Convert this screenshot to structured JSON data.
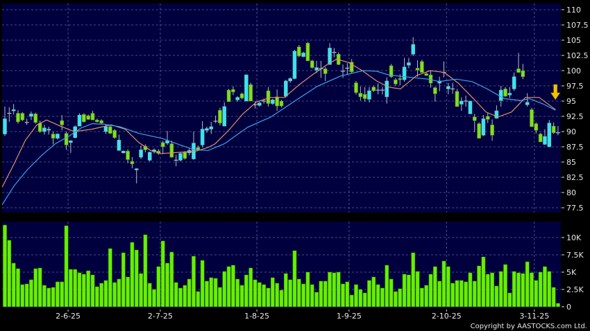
{
  "chart_data": {
    "type": "candlestick",
    "colors": {
      "up": "#33e8f2",
      "down": "#7fe020",
      "volume": "#66f000",
      "ma_short": "#e0906a",
      "ma_long": "#3fa2ee",
      "panel_bg": "#00003f",
      "grid": "#5a6690",
      "marker": "#f2c200"
    },
    "price_axis": {
      "range": [
        77.5,
        110
      ],
      "ticks": [
        "77.5",
        "80",
        "82.5",
        "85",
        "87.5",
        "90",
        "92.5",
        "95",
        "97.5",
        "100",
        "102.5",
        "105",
        "107.5",
        "110"
      ],
      "grid": true,
      "position": "right"
    },
    "volume_axis": {
      "range": [
        0,
        12
      ],
      "unit": "K",
      "ticks": [
        {
          "v": 0,
          "label": "0"
        },
        {
          "v": 2.5,
          "label": "2.5K"
        },
        {
          "v": 5,
          "label": "5K"
        },
        {
          "v": 7.5,
          "label": "7.5K"
        },
        {
          "v": 10,
          "label": "10K"
        }
      ],
      "grid": true
    },
    "x_ticks": [
      {
        "label": "2-6-25",
        "candle": 15.4
      },
      {
        "label": "2-7-25",
        "candle": 36.4
      },
      {
        "label": "1-8-25",
        "candle": 58.4
      },
      {
        "label": "1-9-25",
        "candle": 79.4
      },
      {
        "label": "2-10-25",
        "candle": 101.6
      },
      {
        "label": "3-11-25",
        "candle": 121.6
      }
    ],
    "ohlc_format": [
      "open",
      "high",
      "low",
      "close"
    ],
    "ohlc": [
      [
        89.6,
        94.1,
        89.3,
        92.1
      ],
      [
        93.0,
        94.0,
        91.6,
        93.0
      ],
      [
        93.4,
        94.5,
        92.8,
        93.6
      ],
      [
        93.0,
        93.5,
        91.3,
        91.6
      ],
      [
        93.0,
        93.2,
        91.7,
        91.9
      ],
      [
        91.5,
        92.1,
        91.1,
        91.5
      ],
      [
        92.5,
        93.3,
        91.9,
        92.9
      ],
      [
        92.9,
        93.1,
        91.3,
        91.5
      ],
      [
        91.4,
        91.8,
        89.8,
        90.0
      ],
      [
        90.0,
        91.1,
        89.5,
        90.6
      ],
      [
        90.3,
        90.8,
        89.5,
        90.4
      ],
      [
        89.6,
        90.0,
        87.9,
        88.9
      ],
      [
        88.9,
        89.7,
        88.7,
        89.6
      ],
      [
        91.8,
        92.7,
        90.2,
        91.1
      ],
      [
        89.7,
        90.0,
        87.0,
        87.8
      ],
      [
        88.2,
        88.5,
        86.5,
        88.5
      ],
      [
        89.0,
        91.0,
        88.9,
        90.8
      ],
      [
        90.9,
        93.0,
        90.9,
        92.7
      ],
      [
        92.8,
        93.0,
        91.5,
        91.6
      ],
      [
        92.6,
        92.8,
        91.9,
        92.0
      ],
      [
        93.0,
        93.4,
        91.9,
        91.9
      ],
      [
        91.9,
        92.1,
        91.5,
        91.6
      ],
      [
        91.8,
        92.0,
        91.2,
        91.4
      ],
      [
        90.0,
        91.1,
        89.6,
        90.8
      ],
      [
        90.8,
        91.0,
        89.6,
        89.7
      ],
      [
        90.2,
        90.4,
        88.8,
        89.0
      ],
      [
        86.9,
        89.5,
        86.9,
        88.6
      ],
      [
        86.5,
        86.9,
        86.4,
        86.8
      ],
      [
        86.8,
        87.1,
        84.8,
        85.4
      ],
      [
        85.1,
        85.8,
        84.0,
        84.7
      ],
      [
        83.7,
        84.0,
        81.5,
        83.9
      ],
      [
        85.8,
        87.7,
        85.5,
        87.0
      ],
      [
        87.6,
        87.9,
        86.6,
        87.0
      ],
      [
        85.3,
        86.7,
        85.1,
        86.6
      ],
      [
        86.7,
        87.2,
        86.4,
        87.0
      ],
      [
        86.8,
        87.1,
        86.2,
        86.4
      ],
      [
        88.2,
        88.5,
        86.3,
        87.5
      ],
      [
        88.1,
        90.1,
        87.8,
        88.5
      ],
      [
        88.0,
        88.5,
        85.7,
        85.8
      ],
      [
        85.3,
        86.2,
        84.3,
        85.3
      ],
      [
        85.3,
        86.6,
        85.1,
        86.4
      ],
      [
        86.6,
        86.8,
        85.4,
        85.6
      ],
      [
        86.5,
        87.2,
        86.1,
        86.9
      ],
      [
        85.5,
        90.0,
        85.4,
        88.1
      ],
      [
        87.4,
        87.7,
        86.9,
        87.0
      ],
      [
        87.8,
        91.7,
        87.4,
        90.4
      ],
      [
        90.2,
        90.8,
        89.8,
        90.5
      ],
      [
        90.4,
        91.6,
        89.6,
        90.8
      ],
      [
        91.7,
        92.6,
        91.4,
        91.7
      ],
      [
        93.5,
        93.9,
        91.0,
        91.4
      ],
      [
        90.9,
        94.8,
        90.9,
        94.1
      ],
      [
        96.8,
        97.0,
        94.9,
        94.9
      ],
      [
        96.9,
        97.4,
        96.0,
        96.5
      ],
      [
        95.2,
        95.8,
        94.9,
        95.6
      ],
      [
        96.2,
        96.4,
        95.3,
        95.5
      ],
      [
        95.0,
        99.4,
        95.0,
        99.3
      ],
      [
        97.7,
        98.0,
        95.0,
        95.0
      ],
      [
        94.4,
        95.0,
        93.8,
        94.4
      ],
      [
        94.3,
        94.9,
        94.1,
        94.7
      ],
      [
        95.0,
        95.4,
        94.6,
        95.0
      ],
      [
        96.7,
        97.3,
        94.1,
        94.6
      ],
      [
        94.6,
        95.4,
        94.4,
        95.2
      ],
      [
        95.7,
        96.9,
        93.4,
        94.2
      ],
      [
        95.0,
        95.2,
        94.0,
        94.2
      ],
      [
        95.8,
        98.5,
        95.6,
        98.3
      ],
      [
        98.3,
        98.9,
        98.0,
        98.7
      ],
      [
        98.7,
        103.4,
        98.6,
        103.2
      ],
      [
        103.9,
        104.2,
        102.2,
        102.4
      ],
      [
        102.3,
        103.1,
        102.2,
        102.9
      ],
      [
        104.5,
        104.7,
        101.6,
        101.6
      ],
      [
        101.6,
        101.8,
        100.3,
        100.5
      ],
      [
        100.1,
        101.6,
        99.6,
        100.5
      ],
      [
        100.3,
        101.6,
        98.8,
        100.3
      ],
      [
        100.3,
        100.6,
        98.3,
        99.5
      ],
      [
        101.0,
        104.5,
        101.0,
        103.7
      ],
      [
        103.0,
        103.7,
        102.2,
        103.0
      ],
      [
        102.7,
        103.0,
        100.9,
        101.0
      ],
      [
        99.9,
        101.0,
        98.8,
        99.9
      ],
      [
        100.4,
        101.2,
        99.4,
        100.4
      ],
      [
        101.4,
        101.9,
        99.5,
        99.8
      ],
      [
        98.0,
        98.3,
        96.1,
        96.4
      ],
      [
        96.3,
        97.4,
        95.1,
        95.7
      ],
      [
        96.1,
        97.3,
        94.9,
        95.4
      ],
      [
        95.3,
        97.3,
        94.8,
        96.7
      ],
      [
        97.3,
        97.5,
        96.5,
        96.7
      ],
      [
        96.8,
        97.9,
        96.1,
        96.8
      ],
      [
        96.8,
        97.3,
        96.1,
        96.8
      ],
      [
        95.7,
        98.9,
        94.6,
        98.3
      ],
      [
        100.8,
        101.1,
        98.8,
        99.0
      ],
      [
        98.5,
        98.8,
        97.5,
        97.8
      ],
      [
        98.7,
        99.4,
        97.6,
        98.6
      ],
      [
        98.5,
        102.1,
        98.2,
        100.6
      ],
      [
        100.9,
        102.1,
        100.4,
        101.3
      ],
      [
        102.7,
        105.5,
        102.4,
        104.3
      ],
      [
        100.4,
        101.7,
        99.0,
        100.1
      ],
      [
        101.5,
        101.8,
        99.7,
        99.7
      ],
      [
        99.5,
        99.7,
        99.2,
        99.2
      ],
      [
        99.3,
        100.0,
        97.2,
        97.95
      ],
      [
        97.2,
        97.4,
        94.9,
        96.2
      ],
      [
        97.95,
        99.0,
        96.6,
        98.3
      ],
      [
        99.7,
        101.5,
        98.9,
        99.7
      ],
      [
        97.0,
        98.0,
        96.1,
        97.4
      ],
      [
        97.0,
        98.0,
        96.2,
        97.0
      ],
      [
        96.6,
        97.0,
        94.1,
        94.1
      ],
      [
        94.5,
        95.6,
        93.4,
        95.0
      ],
      [
        95.0,
        95.9,
        94.1,
        95.0
      ],
      [
        92.9,
        95.0,
        92.9,
        95.0
      ],
      [
        92.4,
        92.9,
        89.9,
        91.8
      ],
      [
        91.3,
        91.5,
        88.9,
        88.9
      ],
      [
        89.4,
        92.7,
        89.3,
        92.1
      ],
      [
        92.5,
        93.1,
        91.4,
        92.0
      ],
      [
        91.1,
        92.0,
        88.5,
        89.4
      ],
      [
        92.2,
        94.3,
        92.1,
        93.4
      ],
      [
        95.1,
        97.5,
        94.1,
        96.8
      ],
      [
        97.0,
        97.3,
        95.7,
        95.8
      ],
      [
        96.0,
        97.3,
        95.5,
        96.3
      ],
      [
        97.0,
        99.7,
        96.7,
        99.0
      ],
      [
        100.3,
        102.9,
        99.7,
        99.7
      ],
      [
        100.0,
        101.1,
        98.6,
        99.0
      ],
      [
        94.4,
        96.3,
        94.1,
        94.8
      ],
      [
        93.6,
        93.9,
        90.8,
        90.8
      ],
      [
        91.3,
        91.5,
        89.7,
        90.2
      ],
      [
        89.6,
        89.8,
        88.3,
        88.3
      ],
      [
        87.9,
        90.4,
        87.8,
        89.2
      ],
      [
        87.5,
        91.9,
        87.5,
        91.4
      ],
      [
        90.9,
        91.5,
        89.6,
        89.8
      ],
      [
        89.8,
        90.9,
        89.4,
        89.8
      ]
    ],
    "volume_k": [
      11.8,
      9.6,
      6.3,
      5.5,
      3.2,
      3.3,
      3.9,
      5.5,
      5.6,
      3.1,
      2.7,
      2.8,
      3.6,
      3.6,
      11.7,
      5.4,
      5.4,
      4.9,
      4.7,
      5.2,
      4.6,
      2.9,
      3.4,
      3.8,
      8.4,
      3.5,
      4.0,
      7.8,
      4.3,
      9.3,
      8.2,
      4.8,
      10.4,
      3.4,
      2.5,
      5.8,
      9.5,
      6.3,
      7.9,
      3.5,
      2.7,
      3.1,
      4.0,
      7.3,
      2.2,
      6.7,
      3.7,
      4.2,
      4.1,
      2.8,
      5.1,
      5.8,
      6.0,
      4.0,
      3.1,
      4.6,
      5.6,
      3.9,
      3.5,
      3.2,
      2.7,
      4.2,
      3.4,
      2.4,
      4.8,
      3.9,
      8.1,
      4.0,
      3.3,
      5.0,
      3.2,
      2.1,
      3.7,
      3.7,
      5.0,
      4.9,
      5.0,
      3.3,
      3.6,
      1.7,
      3.2,
      2.5,
      2.0,
      3.8,
      4.3,
      3.2,
      2.7,
      6.0,
      4.0,
      2.2,
      2.6,
      4.7,
      4.6,
      7.8,
      5.1,
      2.7,
      3.1,
      4.7,
      5.8,
      3.7,
      6.6,
      5.8,
      3.4,
      3.8,
      3.8,
      3.6,
      4.9,
      3.7,
      5.9,
      7.2,
      4.7,
      4.9,
      3.0,
      5.1,
      6.1,
      2.0,
      5.1,
      4.9,
      4.8,
      6.5,
      4.9,
      3.8,
      5.0,
      5.8,
      5.1,
      2.8,
      0.5
    ],
    "moving_averages": [
      {
        "key": "ma_short",
        "points": [
          [
            0.4,
            80.9
          ],
          [
            3.1,
            84.7
          ],
          [
            5.7,
            88.6
          ],
          [
            8.3,
            91.1
          ],
          [
            10.5,
            91.9
          ],
          [
            13.6,
            90.9
          ],
          [
            16.8,
            90.0
          ],
          [
            20.9,
            90.4
          ],
          [
            25.2,
            91.1
          ],
          [
            28.4,
            90.4
          ],
          [
            31.5,
            88.2
          ],
          [
            34.2,
            86.9
          ],
          [
            36.7,
            86.4
          ],
          [
            41.0,
            86.6
          ],
          [
            44.6,
            86.8
          ],
          [
            47.3,
            87.4
          ],
          [
            48.9,
            88.0
          ],
          [
            52.1,
            90.3
          ],
          [
            55.2,
            92.9
          ],
          [
            58.4,
            94.9
          ],
          [
            61.6,
            95.6
          ],
          [
            64.7,
            95.6
          ],
          [
            67.9,
            97.6
          ],
          [
            71.0,
            99.3
          ],
          [
            74.2,
            100.9
          ],
          [
            76.6,
            101.9
          ],
          [
            79.4,
            101.3
          ],
          [
            82.6,
            99.9
          ],
          [
            85.7,
            98.3
          ],
          [
            88.4,
            97.3
          ],
          [
            91.1,
            97.0
          ],
          [
            94.8,
            99.2
          ],
          [
            97.9,
            100.0
          ],
          [
            101.1,
            99.7
          ],
          [
            104.2,
            98.0
          ],
          [
            107.9,
            95.3
          ],
          [
            110.6,
            93.2
          ],
          [
            113.3,
            92.4
          ],
          [
            116.4,
            93.2
          ],
          [
            119.6,
            95.6
          ],
          [
            122.7,
            95.6
          ],
          [
            126.4,
            93.6
          ]
        ]
      },
      {
        "key": "ma_long",
        "points": [
          [
            0.4,
            78.0
          ],
          [
            3.1,
            81.1
          ],
          [
            6.2,
            83.8
          ],
          [
            9.4,
            86.1
          ],
          [
            12.5,
            88.0
          ],
          [
            15.7,
            89.3
          ],
          [
            18.4,
            90.6
          ],
          [
            20.9,
            91.3
          ],
          [
            23.6,
            91.2
          ],
          [
            27.2,
            90.8
          ],
          [
            31.5,
            89.7
          ],
          [
            36.7,
            88.9
          ],
          [
            41.0,
            87.8
          ],
          [
            44.2,
            87.0
          ],
          [
            47.3,
            86.9
          ],
          [
            51.0,
            88.0
          ],
          [
            56.3,
            90.7
          ],
          [
            61.6,
            92.4
          ],
          [
            66.8,
            94.9
          ],
          [
            72.1,
            97.4
          ],
          [
            77.4,
            99.1
          ],
          [
            82.6,
            100.0
          ],
          [
            85.7,
            99.9
          ],
          [
            88.4,
            99.3
          ],
          [
            92.1,
            99.0
          ],
          [
            97.4,
            98.6
          ],
          [
            100.0,
            98.2
          ],
          [
            103.8,
            98.6
          ],
          [
            107.4,
            98.2
          ],
          [
            110.6,
            97.1
          ],
          [
            114.8,
            95.4
          ],
          [
            118.5,
            95.1
          ],
          [
            120.5,
            95.4
          ],
          [
            123.7,
            94.5
          ],
          [
            126.4,
            93.5
          ]
        ]
      }
    ],
    "marker": {
      "icon": "down-arrow-icon",
      "candle": 126.4,
      "price": 95.0
    }
  },
  "footer": {
    "copyright": "Copyright by AASTOCKS.com Ltd."
  }
}
